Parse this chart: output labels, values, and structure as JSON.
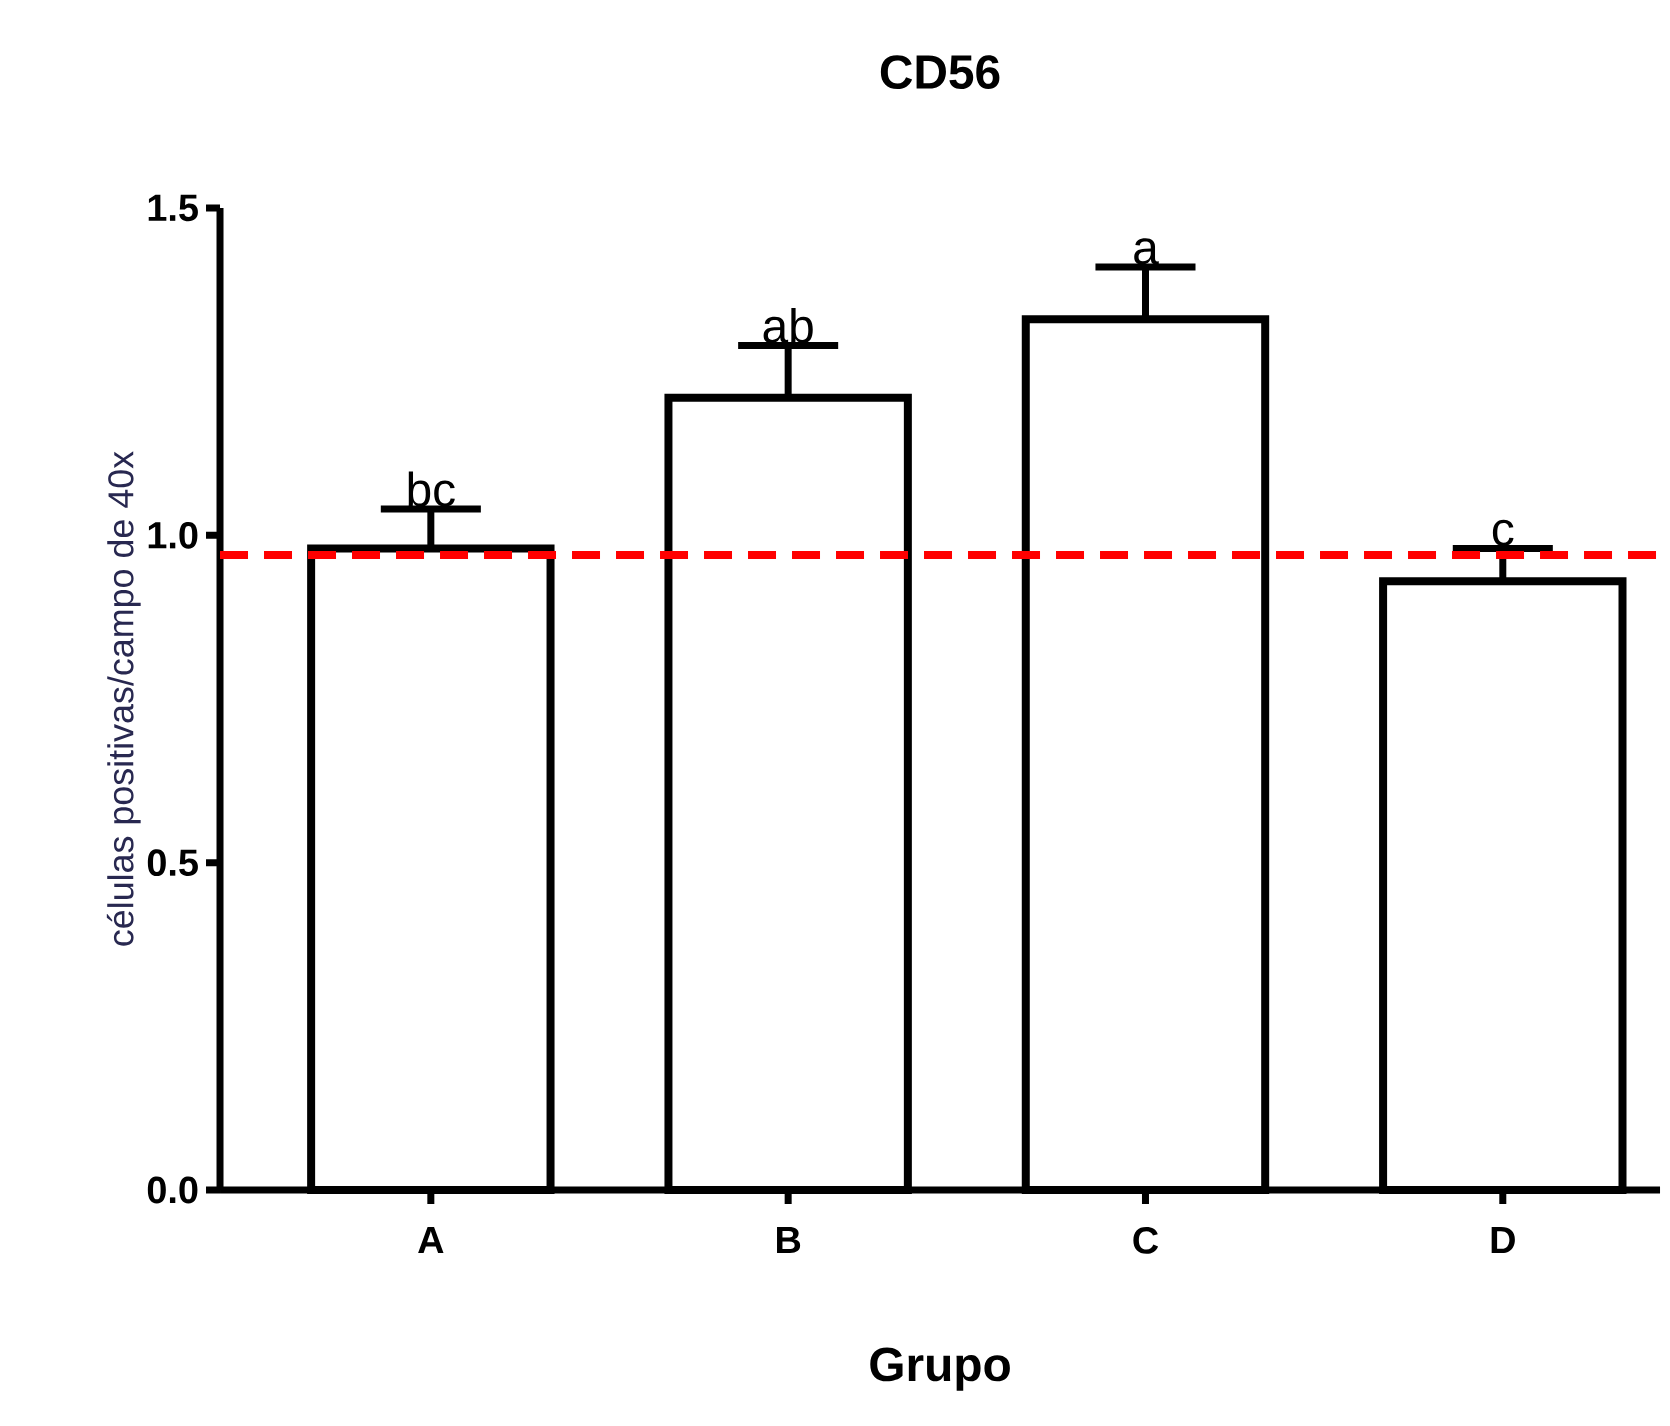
{
  "chart_data": {
    "type": "bar",
    "title": "CD56",
    "xlabel": "Grupo",
    "ylabel": "células positivas/campo de 40x",
    "categories": [
      "A",
      "B",
      "C",
      "D"
    ],
    "values": [
      0.98,
      1.21,
      1.33,
      0.93
    ],
    "errors": [
      [
        0.98,
        1.04
      ],
      [
        1.21,
        1.29
      ],
      [
        1.33,
        1.41
      ],
      [
        0.93,
        0.98
      ]
    ],
    "color": "#ffffff",
    "ylim": [
      0,
      1.5
    ],
    "yticks": [
      {
        "value": 0,
        "label": "0.0"
      },
      0.5,
      {
        "value": 1,
        "label": "1.0"
      },
      1.5
    ],
    "grid": false,
    "ref_lines": [
      {
        "axis": "y",
        "value": 0.97,
        "color": "#ff0000",
        "line_style": "dashed"
      }
    ],
    "annotations": [
      "bc",
      "ab",
      "a",
      "c"
    ]
  }
}
